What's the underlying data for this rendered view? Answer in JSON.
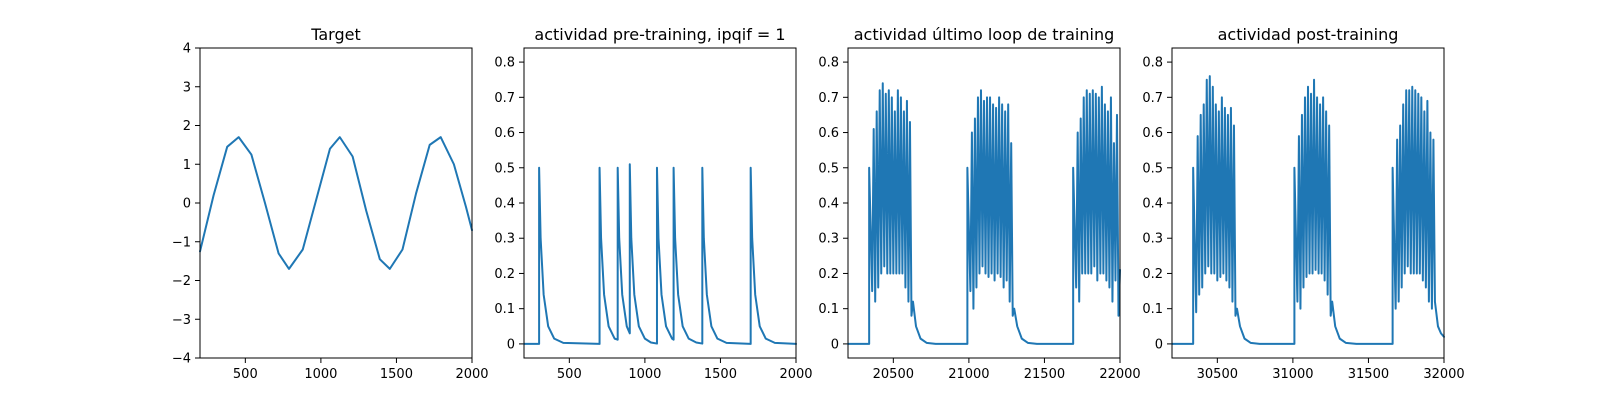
{
  "chart_data": [
    {
      "type": "line",
      "title": "Target",
      "xlabel": "",
      "ylabel": "",
      "xlim": [
        200,
        2000
      ],
      "ylim": [
        -4,
        4
      ],
      "xticks": [
        500,
        1000,
        1500,
        2000
      ],
      "yticks": [
        -4,
        -3,
        -2,
        -1,
        0,
        1,
        2,
        3,
        4
      ],
      "grid": false,
      "color": "#1f77b4",
      "series": [
        {
          "name": "",
          "x": [
            200,
            290,
            380,
            456,
            540,
            630,
            720,
            789,
            880,
            970,
            1060,
            1125,
            1210,
            1300,
            1390,
            1456,
            1540,
            1630,
            1720,
            1793,
            1880,
            1960,
            2000
          ],
          "y": [
            -1.25,
            0.2,
            1.45,
            1.7,
            1.25,
            0.0,
            -1.3,
            -1.7,
            -1.2,
            0.1,
            1.4,
            1.7,
            1.2,
            -0.2,
            -1.45,
            -1.7,
            -1.2,
            0.25,
            1.5,
            1.7,
            1.0,
            -0.1,
            -0.7
          ]
        }
      ]
    },
    {
      "type": "line",
      "title": "actividad pre-training, ipqif = 1",
      "xlabel": "",
      "ylabel": "",
      "xlim": [
        200,
        2000
      ],
      "ylim": [
        -0.04,
        0.84
      ],
      "xticks": [
        500,
        1000,
        1500,
        2000
      ],
      "yticks": [
        0.0,
        0.1,
        0.2,
        0.3,
        0.4,
        0.5,
        0.6,
        0.7,
        0.8
      ],
      "grid": false,
      "color": "#1f77b4",
      "series": [
        {
          "name": "",
          "x": [
            200,
            300,
            300,
            310,
            330,
            360,
            400,
            460,
            700,
            700,
            710,
            730,
            760,
            800,
            820,
            820,
            830,
            850,
            880,
            900,
            900,
            910,
            930,
            960,
            1000,
            1040,
            1080,
            1080,
            1090,
            1110,
            1140,
            1180,
            1190,
            1190,
            1200,
            1220,
            1250,
            1290,
            1340,
            1380,
            1380,
            1390,
            1410,
            1440,
            1480,
            1540,
            1700,
            1700,
            1710,
            1730,
            1760,
            1800,
            1860,
            2000
          ],
          "y": [
            0.0,
            0.0,
            0.5,
            0.3,
            0.14,
            0.05,
            0.015,
            0.003,
            0.0,
            0.5,
            0.3,
            0.14,
            0.05,
            0.015,
            0.012,
            0.5,
            0.3,
            0.14,
            0.05,
            0.03,
            0.51,
            0.3,
            0.14,
            0.05,
            0.015,
            0.004,
            0.001,
            0.5,
            0.3,
            0.14,
            0.05,
            0.015,
            0.012,
            0.5,
            0.3,
            0.14,
            0.05,
            0.015,
            0.004,
            0.001,
            0.5,
            0.3,
            0.14,
            0.05,
            0.015,
            0.003,
            0.0,
            0.5,
            0.3,
            0.14,
            0.05,
            0.015,
            0.003,
            0.0
          ]
        }
      ]
    },
    {
      "type": "line",
      "title": "actividad último loop de training",
      "xlabel": "",
      "ylabel": "",
      "xlim": [
        20200,
        22000
      ],
      "ylim": [
        -0.04,
        0.84
      ],
      "xticks": [
        20500,
        21000,
        21500,
        22000
      ],
      "yticks": [
        0.0,
        0.1,
        0.2,
        0.3,
        0.4,
        0.5,
        0.6,
        0.7,
        0.8
      ],
      "grid": false,
      "color": "#1f77b4",
      "series": [
        {
          "name": "",
          "x": [
            20200,
            20340,
            20340,
            20360,
            20370,
            20380,
            20390,
            20400,
            20410,
            20420,
            20430,
            20440,
            20450,
            20460,
            20470,
            20480,
            20490,
            20500,
            20510,
            20520,
            20530,
            20540,
            20550,
            20560,
            20570,
            20580,
            20590,
            20600,
            20610,
            20620,
            20630,
            20650,
            20680,
            20720,
            20780,
            20990,
            20990,
            21010,
            21020,
            21030,
            21040,
            21050,
            21060,
            21070,
            21080,
            21090,
            21100,
            21110,
            21120,
            21130,
            21140,
            21150,
            21160,
            21170,
            21180,
            21190,
            21200,
            21210,
            21220,
            21230,
            21240,
            21250,
            21260,
            21270,
            21280,
            21290,
            21300,
            21320,
            21350,
            21390,
            21450,
            21690,
            21690,
            21710,
            21720,
            21730,
            21740,
            21750,
            21760,
            21770,
            21780,
            21790,
            21800,
            21810,
            21820,
            21830,
            21840,
            21850,
            21860,
            21870,
            21880,
            21890,
            21900,
            21910,
            21920,
            21930,
            21940,
            21950,
            21960,
            21970,
            21980,
            21990,
            22000
          ],
          "y": [
            0.0,
            0.0,
            0.5,
            0.15,
            0.61,
            0.12,
            0.66,
            0.16,
            0.72,
            0.2,
            0.74,
            0.22,
            0.71,
            0.2,
            0.72,
            0.2,
            0.7,
            0.2,
            0.66,
            0.2,
            0.72,
            0.2,
            0.7,
            0.2,
            0.66,
            0.16,
            0.69,
            0.12,
            0.63,
            0.08,
            0.12,
            0.05,
            0.015,
            0.003,
            0.0,
            0.0,
            0.5,
            0.15,
            0.6,
            0.1,
            0.64,
            0.16,
            0.7,
            0.2,
            0.72,
            0.22,
            0.69,
            0.2,
            0.7,
            0.19,
            0.7,
            0.2,
            0.68,
            0.18,
            0.67,
            0.2,
            0.7,
            0.19,
            0.68,
            0.16,
            0.66,
            0.18,
            0.68,
            0.12,
            0.57,
            0.08,
            0.1,
            0.05,
            0.015,
            0.003,
            0.0,
            0.0,
            0.5,
            0.16,
            0.6,
            0.12,
            0.64,
            0.2,
            0.7,
            0.2,
            0.72,
            0.2,
            0.71,
            0.2,
            0.72,
            0.22,
            0.71,
            0.18,
            0.7,
            0.2,
            0.73,
            0.2,
            0.68,
            0.18,
            0.66,
            0.16,
            0.7,
            0.12,
            0.57,
            0.18,
            0.65,
            0.08,
            0.21
          ]
        }
      ]
    },
    {
      "type": "line",
      "title": "actividad post-training",
      "xlabel": "",
      "ylabel": "",
      "xlim": [
        30200,
        32000
      ],
      "ylim": [
        -0.04,
        0.84
      ],
      "xticks": [
        30500,
        31000,
        31500,
        32000
      ],
      "yticks": [
        0.0,
        0.1,
        0.2,
        0.3,
        0.4,
        0.5,
        0.6,
        0.7,
        0.8
      ],
      "grid": false,
      "color": "#1f77b4",
      "series": [
        {
          "name": "",
          "x": [
            30200,
            30340,
            30340,
            30360,
            30370,
            30380,
            30390,
            30400,
            30410,
            30420,
            30430,
            30440,
            30450,
            30460,
            30470,
            30480,
            30490,
            30500,
            30510,
            30520,
            30530,
            30540,
            30550,
            30560,
            30570,
            30580,
            30590,
            30600,
            30610,
            30620,
            30630,
            30650,
            30680,
            30720,
            30780,
            31010,
            31010,
            31030,
            31040,
            31050,
            31060,
            31070,
            31080,
            31090,
            31100,
            31110,
            31120,
            31130,
            31140,
            31150,
            31160,
            31170,
            31180,
            31190,
            31200,
            31210,
            31220,
            31230,
            31240,
            31250,
            31260,
            31280,
            31310,
            31350,
            31420,
            31660,
            31660,
            31680,
            31690,
            31700,
            31710,
            31720,
            31730,
            31740,
            31750,
            31760,
            31770,
            31780,
            31790,
            31800,
            31810,
            31820,
            31830,
            31840,
            31850,
            31860,
            31870,
            31880,
            31890,
            31900,
            31910,
            31920,
            31930,
            31940,
            31960,
            31980,
            32000
          ],
          "y": [
            0.0,
            0.0,
            0.5,
            0.09,
            0.59,
            0.14,
            0.65,
            0.16,
            0.68,
            0.2,
            0.75,
            0.22,
            0.76,
            0.2,
            0.73,
            0.2,
            0.68,
            0.18,
            0.66,
            0.19,
            0.7,
            0.2,
            0.67,
            0.18,
            0.65,
            0.16,
            0.67,
            0.12,
            0.62,
            0.08,
            0.1,
            0.05,
            0.015,
            0.003,
            0.0,
            0.0,
            0.5,
            0.12,
            0.59,
            0.1,
            0.65,
            0.16,
            0.7,
            0.19,
            0.73,
            0.2,
            0.71,
            0.2,
            0.75,
            0.21,
            0.7,
            0.2,
            0.68,
            0.2,
            0.7,
            0.18,
            0.66,
            0.14,
            0.62,
            0.08,
            0.12,
            0.05,
            0.015,
            0.003,
            0.0,
            0.0,
            0.5,
            0.1,
            0.58,
            0.12,
            0.62,
            0.16,
            0.68,
            0.2,
            0.72,
            0.22,
            0.72,
            0.2,
            0.73,
            0.2,
            0.72,
            0.2,
            0.71,
            0.2,
            0.7,
            0.18,
            0.66,
            0.16,
            0.69,
            0.12,
            0.6,
            0.1,
            0.58,
            0.12,
            0.05,
            0.03,
            0.02
          ]
        }
      ]
    }
  ]
}
